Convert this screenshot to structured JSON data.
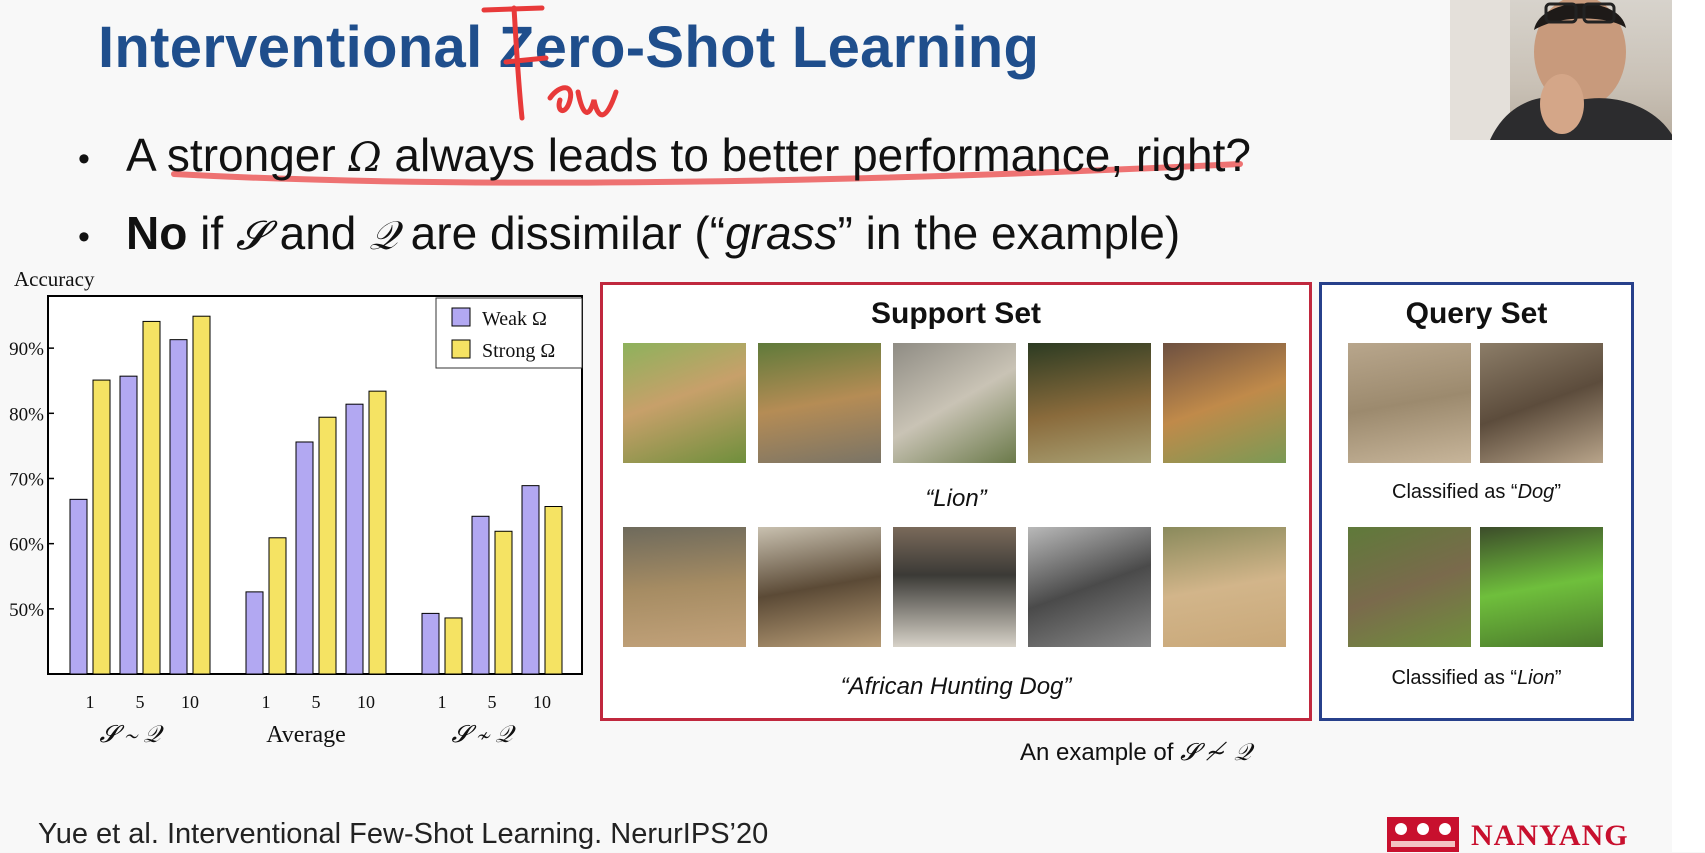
{
  "slide": {
    "title": "Interventional Zero-Shot Learning",
    "annotation_word": "Few",
    "bullets": [
      {
        "parts": [
          "A stronger ",
          "Ω",
          " always leads to better performance, right?"
        ]
      },
      {
        "bold": "No",
        "parts": [
          " if ",
          "𝓢",
          " and ",
          "𝒬",
          " are dissimilar (“",
          "grass",
          "” in the example)"
        ]
      }
    ],
    "footer": "Yue et al. Interventional Few-Shot Learning. NerurIPS’20",
    "logo_text": "NANYANG"
  },
  "chart_data": {
    "type": "bar",
    "ylabel": "Accuracy",
    "ylim": [
      40,
      98
    ],
    "yticks": [
      "50%",
      "60%",
      "70%",
      "80%",
      "90%"
    ],
    "ytick_values": [
      50,
      60,
      70,
      80,
      90
    ],
    "groups": [
      "𝓢 ∼ 𝒬",
      "Average",
      "𝓢 ≁ 𝒬"
    ],
    "categories": [
      "1",
      "5",
      "10"
    ],
    "legend_position": "top-right",
    "series": [
      {
        "name": "Weak Ω",
        "color": "#b2a8f2",
        "values": [
          [
            66.8,
            85.7,
            91.3
          ],
          [
            52.6,
            75.6,
            81.4
          ],
          [
            49.3,
            64.2,
            68.9
          ]
        ]
      },
      {
        "name": "Strong Ω",
        "color": "#f5e363",
        "values": [
          [
            85.1,
            94.1,
            94.9
          ],
          [
            60.9,
            79.4,
            83.4
          ],
          [
            48.6,
            61.9,
            65.7
          ]
        ]
      }
    ]
  },
  "support_set": {
    "title": "Support Set",
    "row1_caption": "“Lion”",
    "row2_caption": "“African Hunting Dog”"
  },
  "query_set": {
    "title": "Query Set",
    "row1_caption_prefix": "Classified as “",
    "row1_caption_label": "Dog",
    "row1_caption_suffix": "”",
    "row2_caption_prefix": "Classified as “",
    "row2_caption_label": "Lion",
    "row2_caption_suffix": "”"
  },
  "example_caption": {
    "prefix": "An example of ",
    "math": "𝓢 ≁ 𝒬"
  }
}
